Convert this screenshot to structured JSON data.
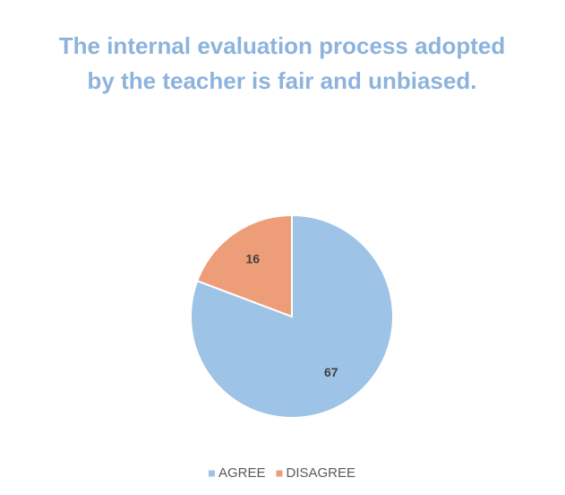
{
  "chart_data": {
    "type": "pie",
    "title": "The internal evaluation process adopted by the teacher is fair and unbiased.",
    "categories": [
      "AGREE",
      "DISAGREE"
    ],
    "values": [
      67,
      16
    ],
    "colors": [
      "#9dc3e6",
      "#ee9d79"
    ],
    "legend": "bottom"
  }
}
